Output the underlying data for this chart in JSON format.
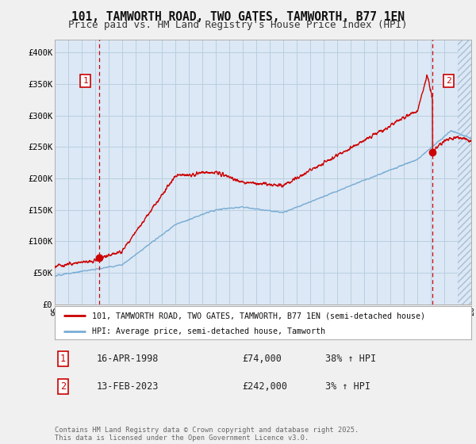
{
  "title": "101, TAMWORTH ROAD, TWO GATES, TAMWORTH, B77 1EN",
  "subtitle": "Price paid vs. HM Land Registry's House Price Index (HPI)",
  "ylim": [
    0,
    420000
  ],
  "yticks": [
    0,
    50000,
    100000,
    150000,
    200000,
    250000,
    300000,
    350000,
    400000
  ],
  "ytick_labels": [
    "£0",
    "£50K",
    "£100K",
    "£150K",
    "£200K",
    "£250K",
    "£300K",
    "£350K",
    "£400K"
  ],
  "background_color": "#f0f0f0",
  "plot_bg_color": "#dce8f5",
  "grid_color": "#b8cfe0",
  "line1_color": "#cc0000",
  "line2_color": "#7aadd4",
  "pt1_year": 1998.29,
  "pt1_price": 74000,
  "pt2_year": 2023.12,
  "pt2_price": 242000,
  "legend1": "101, TAMWORTH ROAD, TWO GATES, TAMWORTH, B77 1EN (semi-detached house)",
  "legend2": "HPI: Average price, semi-detached house, Tamworth",
  "table_row1_num": "1",
  "table_row1_date": "16-APR-1998",
  "table_row1_price": "£74,000",
  "table_row1_pct": "38% ↑ HPI",
  "table_row2_num": "2",
  "table_row2_date": "13-FEB-2023",
  "table_row2_price": "£242,000",
  "table_row2_pct": "3% ↑ HPI",
  "footer": "Contains HM Land Registry data © Crown copyright and database right 2025.\nThis data is licensed under the Open Government Licence v3.0.",
  "xmin": 1995,
  "xmax": 2026,
  "hatch_start": 2025
}
